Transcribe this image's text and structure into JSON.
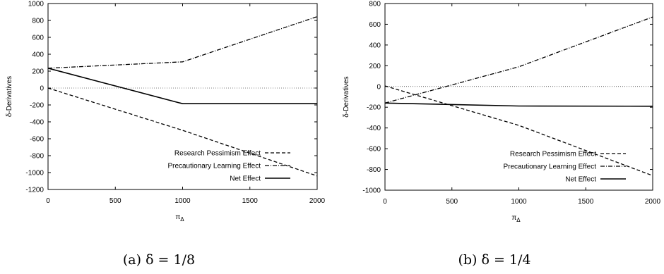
{
  "chart_data": [
    {
      "type": "line",
      "xlabel": "π",
      "xlabel_sub": "Δ",
      "ylabel": "δ-Derivatives",
      "xlim": [
        0,
        2000
      ],
      "ylim": [
        -1200,
        1000
      ],
      "xticks": [
        "0",
        "500",
        "1000",
        "1500",
        "2000"
      ],
      "yticks": [
        "-1200",
        "-1000",
        "-800",
        "-600",
        "-400",
        "-200",
        "0",
        "200",
        "400",
        "600",
        "800",
        "1000"
      ],
      "legend_position": "bottom-right",
      "caption": "(a) δ = 1/8",
      "series": [
        {
          "name": "Research Pessimism Effect",
          "style": "dashed",
          "x": [
            0,
            1000,
            2000
          ],
          "y": [
            0,
            -500,
            -1040
          ]
        },
        {
          "name": "Precautionary Learning Effect",
          "style": "dashdot",
          "x": [
            0,
            1000,
            2000
          ],
          "y": [
            235,
            310,
            845
          ]
        },
        {
          "name": "Net Effect",
          "style": "solid",
          "x": [
            0,
            1000,
            2000
          ],
          "y": [
            235,
            -185,
            -185
          ]
        }
      ]
    },
    {
      "type": "line",
      "xlabel": "π",
      "xlabel_sub": "Δ",
      "ylabel": "δ-Derivatives",
      "xlim": [
        0,
        2000
      ],
      "ylim": [
        -1000,
        800
      ],
      "xticks": [
        "0",
        "500",
        "1000",
        "1500",
        "2000"
      ],
      "yticks": [
        "-1000",
        "-800",
        "-600",
        "-400",
        "-200",
        "0",
        "200",
        "400",
        "600",
        "800"
      ],
      "legend_position": "bottom-right",
      "caption": "(b) δ = 1/4",
      "series": [
        {
          "name": "Research Pessimism Effect",
          "style": "dashed",
          "x": [
            0,
            1000,
            2000
          ],
          "y": [
            5,
            -375,
            -860
          ]
        },
        {
          "name": "Precautionary Learning Effect",
          "style": "dashdot",
          "x": [
            0,
            1000,
            2000
          ],
          "y": [
            -160,
            190,
            670
          ]
        },
        {
          "name": "Net Effect",
          "style": "solid",
          "x": [
            0,
            1000,
            2000
          ],
          "y": [
            -160,
            -188,
            -190
          ]
        }
      ]
    }
  ]
}
